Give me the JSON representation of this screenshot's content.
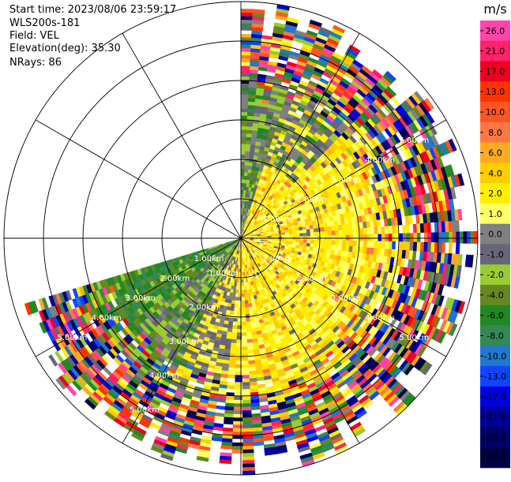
{
  "header": {
    "start_time": "Start time: 2023/08/06 23:59:17",
    "instrument": "WLS200s-181",
    "field": "Field: VEL",
    "elevation": "Elevation(deg): 35.30",
    "nrays": "NRays: 86"
  },
  "chart_data": {
    "type": "heatmap",
    "projection": "polar-ppi",
    "field": "VEL",
    "units": "m/s",
    "elevation_deg": 35.3,
    "n_rays": 86,
    "azimuth_coverage_deg": [
      0,
      253
    ],
    "max_range_km": 6.0,
    "range_rings_km": [
      1,
      2,
      3,
      4,
      5,
      6
    ],
    "ring_labels": [
      "1.00km",
      "2.00km",
      "3.00km",
      "4.00km",
      "5.00km"
    ],
    "spokes_every_deg": 30,
    "grid": true,
    "colorbar": {
      "title": "m/s",
      "placement": "right",
      "ticks": [
        "26.0",
        "21.0",
        "17.0",
        "13.0",
        "10.0",
        "8.0",
        "6.0",
        "4.0",
        "2.0",
        "1.0",
        "0.0",
        "-1.0",
        "-2.0",
        "-4.0",
        "-6.0",
        "-8.0",
        "-10.0",
        "-13.0",
        "-17.0",
        "-21.0",
        "-26.0",
        "-30.0"
      ],
      "colors": [
        "#ff44aa",
        "#ff2266",
        "#ee0022",
        "#ff3300",
        "#ff5522",
        "#ff7744",
        "#ffaa22",
        "#ffcc00",
        "#ffee00",
        "#ffff66",
        "#808080",
        "#666677",
        "#99cc33",
        "#668822",
        "#228822",
        "#338855",
        "#2277cc",
        "#1144ff",
        "#0000dd",
        "#000099",
        "#000066",
        "#000044"
      ]
    }
  }
}
